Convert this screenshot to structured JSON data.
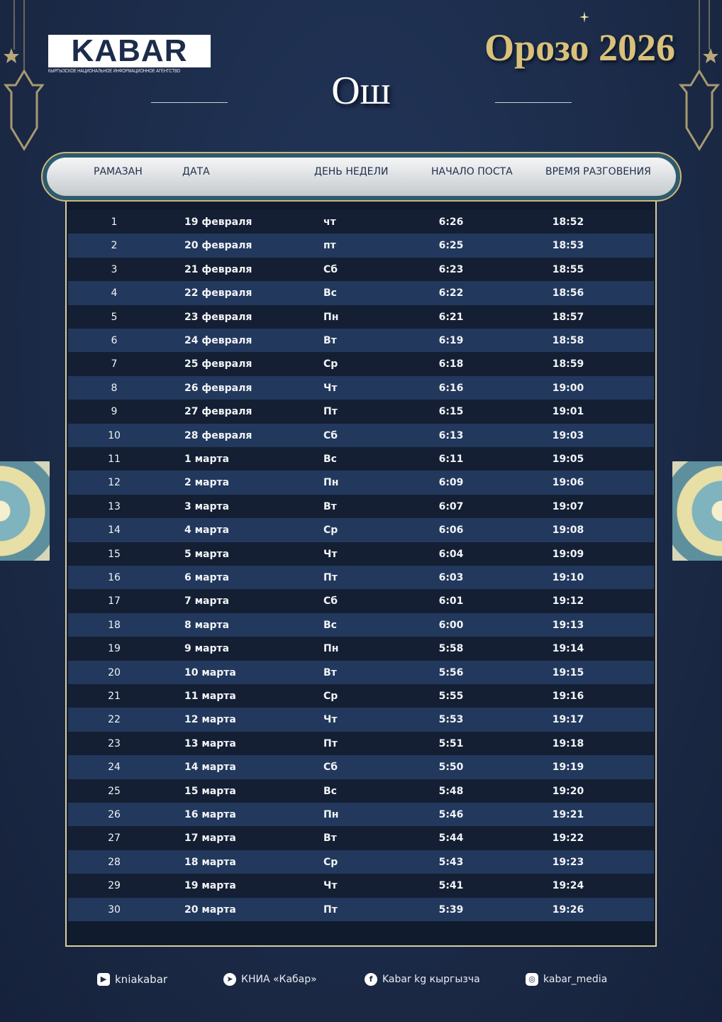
{
  "header": {
    "logo": "KABAR",
    "logo_subtitle": "КЫРГЫЗСКОЕ НАЦИОНАЛЬНОЕ ИНФОРМАЦИОННОЕ АГЕНТСТВО",
    "title": "Орозо 2026",
    "city": "Ош"
  },
  "table": {
    "columns": [
      "РАМАЗАН",
      "ДАТА",
      "ДЕНЬ НЕДЕЛИ",
      "НАЧАЛО ПОСТА",
      "ВРЕМЯ РАЗГОВЕНИЯ"
    ],
    "rows": [
      [
        "1",
        "19 февраля",
        "чт",
        "6:26",
        "18:52"
      ],
      [
        "2",
        "20 февраля",
        "пт",
        "6:25",
        "18:53"
      ],
      [
        "3",
        "21 февраля",
        "Сб",
        "6:23",
        "18:55"
      ],
      [
        "4",
        "22 февраля",
        "Вс",
        "6:22",
        "18:56"
      ],
      [
        "5",
        "23 февраля",
        "Пн",
        "6:21",
        "18:57"
      ],
      [
        "6",
        "24 февраля",
        "Вт",
        "6:19",
        "18:58"
      ],
      [
        "7",
        "25 февраля",
        "Ср",
        "6:18",
        "18:59"
      ],
      [
        "8",
        "26 февраля",
        "Чт",
        "6:16",
        "19:00"
      ],
      [
        "9",
        "27 февраля",
        "Пт",
        "6:15",
        "19:01"
      ],
      [
        "10",
        "28 февраля",
        "Сб",
        "6:13",
        "19:03"
      ],
      [
        "11",
        "1 марта",
        "Вс",
        "6:11",
        "19:05"
      ],
      [
        "12",
        "2 марта",
        "Пн",
        "6:09",
        "19:06"
      ],
      [
        "13",
        "3 марта",
        "Вт",
        "6:07",
        "19:07"
      ],
      [
        "14",
        "4 марта",
        "Ср",
        "6:06",
        "19:08"
      ],
      [
        "15",
        "5 марта",
        "Чт",
        "6:04",
        "19:09"
      ],
      [
        "16",
        "6 марта",
        "Пт",
        "6:03",
        "19:10"
      ],
      [
        "17",
        "7 марта",
        "Сб",
        "6:01",
        "19:12"
      ],
      [
        "18",
        "8 марта",
        "Вс",
        "6:00",
        "19:13"
      ],
      [
        "19",
        "9 марта",
        "Пн",
        "5:58",
        "19:14"
      ],
      [
        "20",
        "10 марта",
        "Вт",
        "5:56",
        "19:15"
      ],
      [
        "21",
        "11 марта",
        "Ср",
        "5:55",
        "19:16"
      ],
      [
        "22",
        "12 марта",
        "Чт",
        "5:53",
        "19:17"
      ],
      [
        "23",
        "13 марта",
        "Пт",
        "5:51",
        "19:18"
      ],
      [
        "24",
        "14 марта",
        "Сб",
        "5:50",
        "19:19"
      ],
      [
        "25",
        "15 марта",
        "Вс",
        "5:48",
        "19:20"
      ],
      [
        "26",
        "16 марта",
        "Пн",
        "5:46",
        "19:21"
      ],
      [
        "27",
        "17 марта",
        "Вт",
        "5:44",
        "19:22"
      ],
      [
        "28",
        "18 марта",
        "Ср",
        "5:43",
        "19:23"
      ],
      [
        "29",
        "19 марта",
        "Чт",
        "5:41",
        "19:24"
      ],
      [
        "30",
        "20 марта",
        "Пт",
        "5:39",
        "19:26"
      ]
    ]
  },
  "footer": [
    {
      "icon": "youtube-icon",
      "label": "kniakabar"
    },
    {
      "icon": "telegram-icon",
      "label": "КНИА «Кабар»"
    },
    {
      "icon": "facebook-icon",
      "label": "Kabar kg кыргызча"
    },
    {
      "icon": "instagram-icon",
      "label": "kabar_media"
    }
  ],
  "colors": {
    "background": "#1c2c4a",
    "gold": "#d9c17a",
    "row_dark": "#141f33",
    "row_light": "#22385c"
  }
}
